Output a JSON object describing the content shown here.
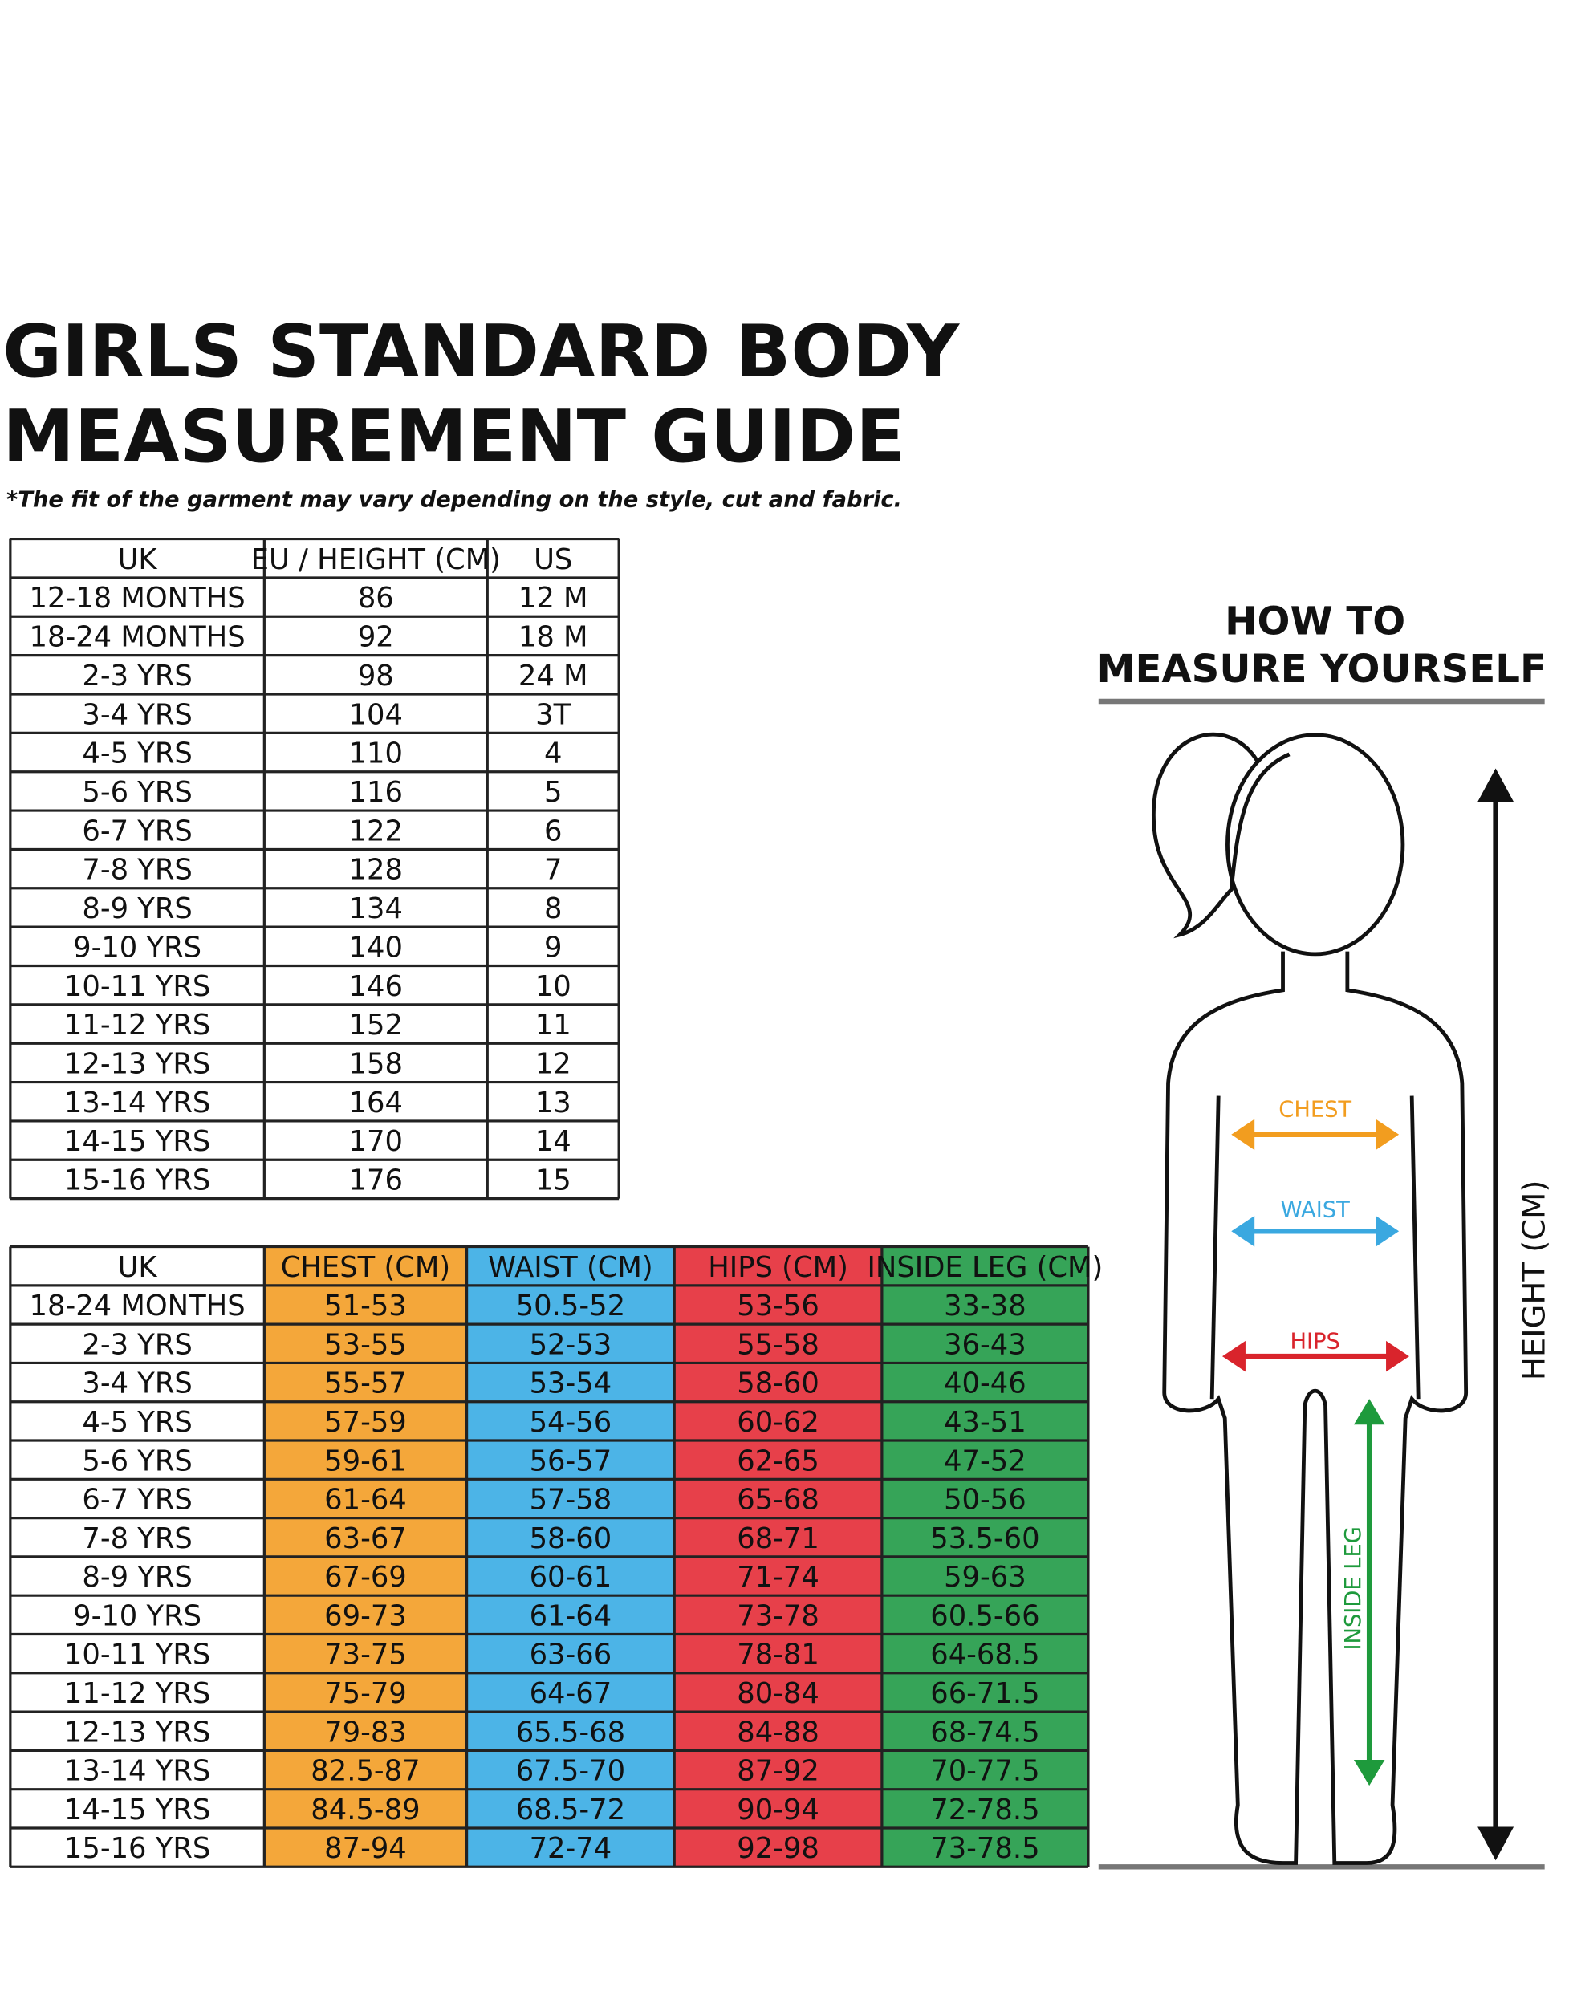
{
  "header": {
    "title": [
      "GIRLS STANDARD BODY",
      "MEASUREMENT GUIDE"
    ],
    "note": "*The fit of the garment may vary depending on the style, cut and fabric."
  },
  "size_table": {
    "columns": [
      "UK",
      "EU / HEIGHT (CM)",
      "US"
    ],
    "rows": [
      [
        "12-18 MONTHS",
        "86",
        "12 M"
      ],
      [
        "18-24 MONTHS",
        "92",
        "18 M"
      ],
      [
        "2-3 YRS",
        "98",
        "24 M"
      ],
      [
        "3-4 YRS",
        "104",
        "3T"
      ],
      [
        "4-5 YRS",
        "110",
        "4"
      ],
      [
        "5-6 YRS",
        "116",
        "5"
      ],
      [
        "6-7 YRS",
        "122",
        "6"
      ],
      [
        "7-8 YRS",
        "128",
        "7"
      ],
      [
        "8-9 YRS",
        "134",
        "8"
      ],
      [
        "9-10 YRS",
        "140",
        "9"
      ],
      [
        "10-11 YRS",
        "146",
        "10"
      ],
      [
        "11-12 YRS",
        "152",
        "11"
      ],
      [
        "12-13 YRS",
        "158",
        "12"
      ],
      [
        "13-14 YRS",
        "164",
        "13"
      ],
      [
        "14-15 YRS",
        "170",
        "14"
      ],
      [
        "15-16 YRS",
        "176",
        "15"
      ]
    ]
  },
  "measurement_table": {
    "columns": [
      "UK",
      "CHEST (CM)",
      "WAIST (CM)",
      "HIPS (CM)",
      "INSIDE LEG (CM)"
    ],
    "rows": [
      [
        "18-24 MONTHS",
        "51-53",
        "50.5-52",
        "53-56",
        "33-38"
      ],
      [
        "2-3 YRS",
        "53-55",
        "52-53",
        "55-58",
        "36-43"
      ],
      [
        "3-4 YRS",
        "55-57",
        "53-54",
        "58-60",
        "40-46"
      ],
      [
        "4-5 YRS",
        "57-59",
        "54-56",
        "60-62",
        "43-51"
      ],
      [
        "5-6 YRS",
        "59-61",
        "56-57",
        "62-65",
        "47-52"
      ],
      [
        "6-7 YRS",
        "61-64",
        "57-58",
        "65-68",
        "50-56"
      ],
      [
        "7-8 YRS",
        "63-67",
        "58-60",
        "68-71",
        "53.5-60"
      ],
      [
        "8-9 YRS",
        "67-69",
        "60-61",
        "71-74",
        "59-63"
      ],
      [
        "9-10 YRS",
        "69-73",
        "61-64",
        "73-78",
        "60.5-66"
      ],
      [
        "10-11 YRS",
        "73-75",
        "63-66",
        "78-81",
        "64-68.5"
      ],
      [
        "11-12 YRS",
        "75-79",
        "64-67",
        "80-84",
        "66-71.5"
      ],
      [
        "12-13 YRS",
        "79-83",
        "65.5-68",
        "84-88",
        "68-74.5"
      ],
      [
        "13-14 YRS",
        "82.5-87",
        "67.5-70",
        "87-92",
        "70-77.5"
      ],
      [
        "14-15 YRS",
        "84.5-89",
        "68.5-72",
        "90-94",
        "72-78.5"
      ],
      [
        "15-16 YRS",
        "87-94",
        "72-74",
        "92-98",
        "73-78.5"
      ]
    ]
  },
  "diagram": {
    "title": [
      "HOW TO",
      "MEASURE YOURSELF"
    ],
    "labels": {
      "chest": "CHEST",
      "waist": "WAIST",
      "hips": "HIPS",
      "inside_leg": "INSIDE LEG",
      "height": "HEIGHT (CM)"
    }
  }
}
